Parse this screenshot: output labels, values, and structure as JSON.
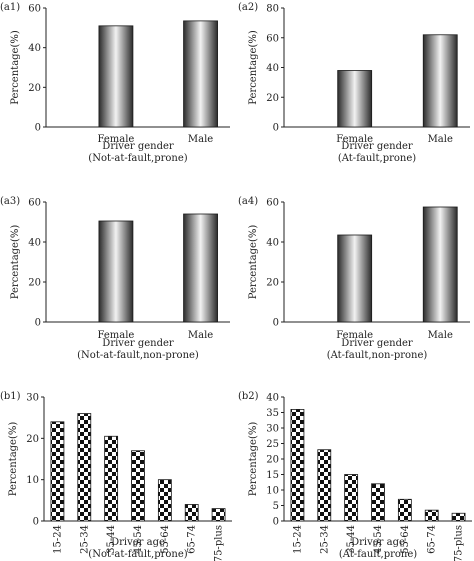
{
  "colors": {
    "bar_dark": "#2b2b2b",
    "bar_light": "#f2f2f2",
    "axis": "#222222",
    "checker": "#111111"
  },
  "chart_data": [
    {
      "panel_label": "(a1)",
      "type": "bar",
      "categories": [
        "Female",
        "Male"
      ],
      "values": [
        51,
        53.5
      ],
      "xlabel": "Driver gender",
      "xlabel2": "(Not-at-fault,prone)",
      "ylabel": "Percentage(%)",
      "ylim": [
        0,
        60
      ],
      "yticks": [
        0,
        20,
        40,
        60
      ],
      "fill": "gradient"
    },
    {
      "panel_label": "(a2)",
      "type": "bar",
      "categories": [
        "Female",
        "Male"
      ],
      "values": [
        38,
        62
      ],
      "xlabel": "Driver gender",
      "xlabel2": "(At-fault,prone)",
      "ylabel": "Percentage(%)",
      "ylim": [
        0,
        80
      ],
      "yticks": [
        0,
        20,
        40,
        60,
        80
      ],
      "fill": "gradient"
    },
    {
      "panel_label": "(a3)",
      "type": "bar",
      "categories": [
        "Female",
        "Male"
      ],
      "values": [
        50.5,
        54
      ],
      "xlabel": "Driver gender",
      "xlabel2": "(Not-at-fault,non-prone)",
      "ylabel": "Percentage(%)",
      "ylim": [
        0,
        60
      ],
      "yticks": [
        0,
        20,
        40,
        60
      ],
      "fill": "gradient"
    },
    {
      "panel_label": "(a4)",
      "type": "bar",
      "categories": [
        "Female",
        "Male"
      ],
      "values": [
        43.5,
        57.5
      ],
      "xlabel": "Driver gender",
      "xlabel2": "(At-fault,non-prone)",
      "ylabel": "Percentage(%)",
      "ylim": [
        0,
        60
      ],
      "yticks": [
        0,
        20,
        40,
        60
      ],
      "fill": "gradient"
    },
    {
      "panel_label": "(b1)",
      "type": "bar",
      "categories": [
        "15-24",
        "25-34",
        "35-44",
        "45-54",
        "55-64",
        "65-74",
        "75-plus"
      ],
      "values": [
        24,
        26,
        20.5,
        17,
        10,
        4,
        3
      ],
      "xlabel": "Driver age",
      "xlabel2": "(Not-at-fault,prone)",
      "ylabel": "Percentage(%)",
      "ylim": [
        0,
        30
      ],
      "yticks": [
        0,
        10,
        20,
        30
      ],
      "fill": "checker"
    },
    {
      "panel_label": "(b2)",
      "type": "bar",
      "categories": [
        "15-24",
        "25-34",
        "35-44",
        "45-54",
        "55-64",
        "65-74",
        "75-plus"
      ],
      "values": [
        36,
        23,
        15,
        12,
        7,
        3.5,
        2.5
      ],
      "xlabel": "Driver age",
      "xlabel2": "(At-fault,prone)",
      "ylabel": "Percentage(%)",
      "ylim": [
        0,
        40
      ],
      "yticks": [
        0,
        5,
        10,
        15,
        20,
        25,
        30,
        35,
        40
      ],
      "fill": "checker"
    }
  ]
}
